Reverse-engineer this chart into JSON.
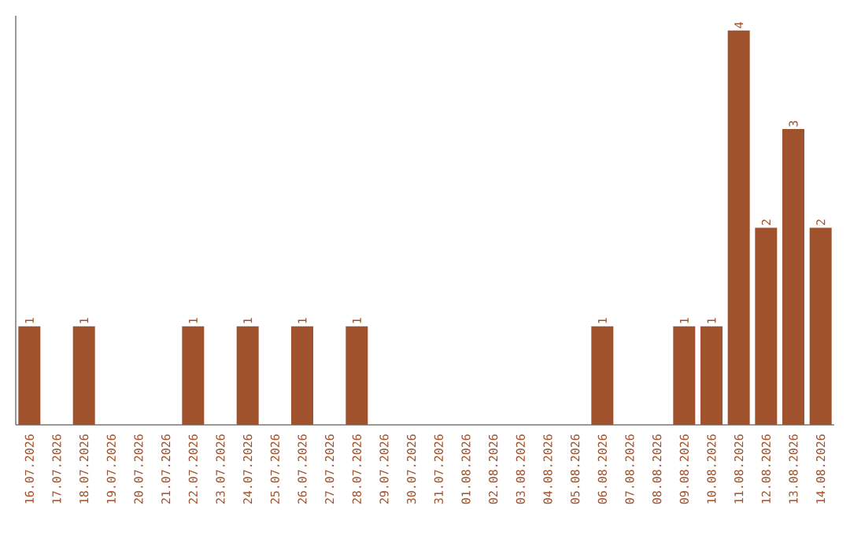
{
  "chart_data": {
    "type": "bar",
    "categories": [
      "16.07.2026",
      "17.07.2026",
      "18.07.2026",
      "19.07.2026",
      "20.07.2026",
      "21.07.2026",
      "22.07.2026",
      "23.07.2026",
      "24.07.2026",
      "25.07.2026",
      "26.07.2026",
      "27.07.2026",
      "28.07.2026",
      "29.07.2026",
      "30.07.2026",
      "31.07.2026",
      "01.08.2026",
      "02.08.2026",
      "03.08.2026",
      "04.08.2026",
      "05.08.2026",
      "06.08.2026",
      "07.08.2026",
      "08.08.2026",
      "09.08.2026",
      "10.08.2026",
      "11.08.2026",
      "12.08.2026",
      "13.08.2026",
      "14.08.2026"
    ],
    "values": [
      1,
      0,
      1,
      0,
      0,
      0,
      1,
      0,
      1,
      0,
      1,
      0,
      1,
      0,
      0,
      0,
      0,
      0,
      0,
      0,
      0,
      1,
      0,
      0,
      1,
      1,
      4,
      2,
      3,
      2
    ],
    "value_labels": [
      "1",
      null,
      "1",
      null,
      null,
      null,
      "1",
      null,
      "1",
      null,
      "1",
      null,
      "1",
      null,
      null,
      null,
      null,
      null,
      null,
      null,
      null,
      "1",
      null,
      null,
      "1",
      "1",
      "4",
      "2",
      "3",
      "2"
    ],
    "color": "#a0522d",
    "ylim": [
      0,
      4.15
    ]
  }
}
